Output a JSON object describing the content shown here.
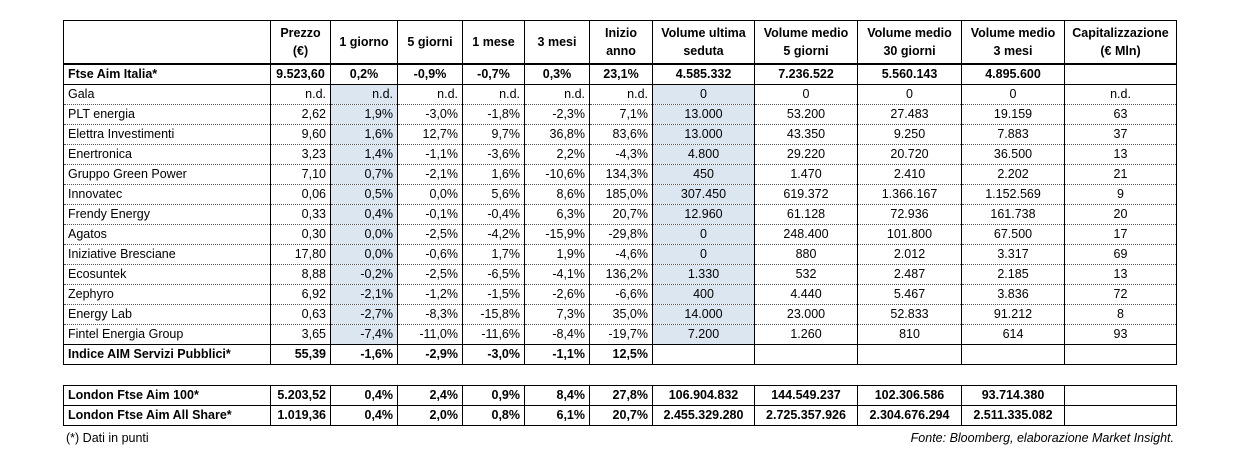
{
  "table": {
    "header": [
      "Prezzo (€)",
      "1 giorno",
      "5 giorni",
      "1 mese",
      "3 mesi",
      "Inizio anno",
      "Volume ultima seduta",
      "Volume medio 5 giorni",
      "Volume medio 30 giorni",
      "Volume medio 3 mesi",
      "Capitalizzazione (€ Mln)"
    ],
    "index_row": [
      "Ftse Aim Italia*",
      "9.523,60",
      "0,2%",
      "-0,9%",
      "-0,7%",
      "0,3%",
      "23,1%",
      "4.585.332",
      "7.236.522",
      "5.560.143",
      "4.895.600"
    ],
    "stocks": [
      [
        "Gala",
        "n.d.",
        "n.d.",
        "n.d.",
        "n.d.",
        "n.d.",
        "n.d.",
        "0",
        "0",
        "0",
        "0",
        "n.d."
      ],
      [
        "PLT energia",
        "2,62",
        "1,9%",
        "-3,0%",
        "-1,8%",
        "-2,3%",
        "7,1%",
        "13.000",
        "53.200",
        "27.483",
        "19.159",
        "63"
      ],
      [
        "Elettra Investimenti",
        "9,60",
        "1,6%",
        "12,7%",
        "9,7%",
        "36,8%",
        "83,6%",
        "13.000",
        "43.350",
        "9.250",
        "7.883",
        "37"
      ],
      [
        "Enertronica",
        "3,23",
        "1,4%",
        "-1,1%",
        "-3,6%",
        "2,2%",
        "-4,3%",
        "4.800",
        "29.220",
        "20.720",
        "36.500",
        "13"
      ],
      [
        "Gruppo Green Power",
        "7,10",
        "0,7%",
        "-2,1%",
        "1,6%",
        "-10,6%",
        "134,3%",
        "450",
        "1.470",
        "2.410",
        "2.202",
        "21"
      ],
      [
        "Innovatec",
        "0,06",
        "0,5%",
        "0,0%",
        "5,6%",
        "8,6%",
        "185,0%",
        "307.450",
        "619.372",
        "1.366.167",
        "1.152.569",
        "9"
      ],
      [
        "Frendy Energy",
        "0,33",
        "0,4%",
        "-0,1%",
        "-0,4%",
        "6,3%",
        "20,7%",
        "12.960",
        "61.128",
        "72.936",
        "161.738",
        "20"
      ],
      [
        "Agatos",
        "0,30",
        "0,0%",
        "-2,5%",
        "-4,2%",
        "-15,9%",
        "-29,8%",
        "0",
        "248.400",
        "101.800",
        "67.500",
        "17"
      ],
      [
        "Iniziative Bresciane",
        "17,80",
        "0,0%",
        "-0,6%",
        "1,7%",
        "1,9%",
        "-4,6%",
        "0",
        "880",
        "2.012",
        "3.317",
        "69"
      ],
      [
        "Ecosuntek",
        "8,88",
        "-0,2%",
        "-2,5%",
        "-6,5%",
        "-4,1%",
        "136,2%",
        "1.330",
        "532",
        "2.487",
        "2.185",
        "13"
      ],
      [
        "Zephyro",
        "6,92",
        "-2,1%",
        "-1,2%",
        "-1,5%",
        "-2,6%",
        "-6,6%",
        "400",
        "4.440",
        "5.467",
        "3.836",
        "72"
      ],
      [
        "Energy Lab",
        "0,63",
        "-2,7%",
        "-8,3%",
        "-15,8%",
        "7,3%",
        "35,0%",
        "14.000",
        "23.000",
        "52.833",
        "91.212",
        "8"
      ],
      [
        "Fintel Energia Group",
        "3,65",
        "-7,4%",
        "-11,0%",
        "-11,6%",
        "-8,4%",
        "-19,7%",
        "7.200",
        "1.260",
        "810",
        "614",
        "93"
      ]
    ],
    "sector_row": [
      "Indice AIM Servizi Pubblici*",
      "55,39",
      "-1,6%",
      "-2,9%",
      "-3,0%",
      "-1,1%",
      "12,5%"
    ],
    "london_rows": [
      [
        "London Ftse Aim 100*",
        "5.203,52",
        "0,4%",
        "2,4%",
        "0,9%",
        "8,4%",
        "27,8%",
        "106.904.832",
        "144.549.237",
        "102.306.586",
        "93.714.380"
      ],
      [
        "London Ftse Aim All Share*",
        "1.019,36",
        "0,4%",
        "2,0%",
        "0,8%",
        "6,1%",
        "20,7%",
        "2.455.329.280",
        "2.725.357.926",
        "2.304.676.294",
        "2.511.335.082"
      ]
    ]
  },
  "footnote": "(*) Dati in punti",
  "source": "Fonte: Bloomberg, elaborazione Market Insight."
}
